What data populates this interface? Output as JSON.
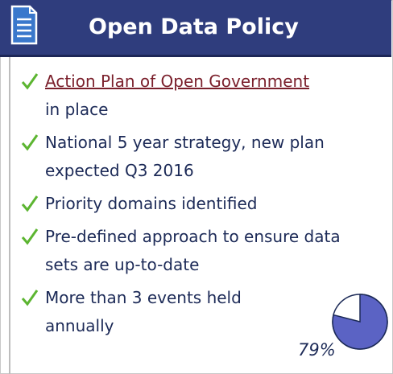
{
  "header": {
    "title": "Open Data Policy"
  },
  "items": [
    {
      "link": "Action Plan of Open Government",
      "text": "in place"
    },
    {
      "text": "National 5 year strategy, new plan expected Q3 2016"
    },
    {
      "text": "Priority domains identified"
    },
    {
      "text": "Pre-defined approach to ensure data sets are up-to-date"
    },
    {
      "text": "More than 3 events held annually"
    }
  ],
  "pie": {
    "value": 79,
    "label": "79%",
    "color": "#5b63c4"
  }
}
